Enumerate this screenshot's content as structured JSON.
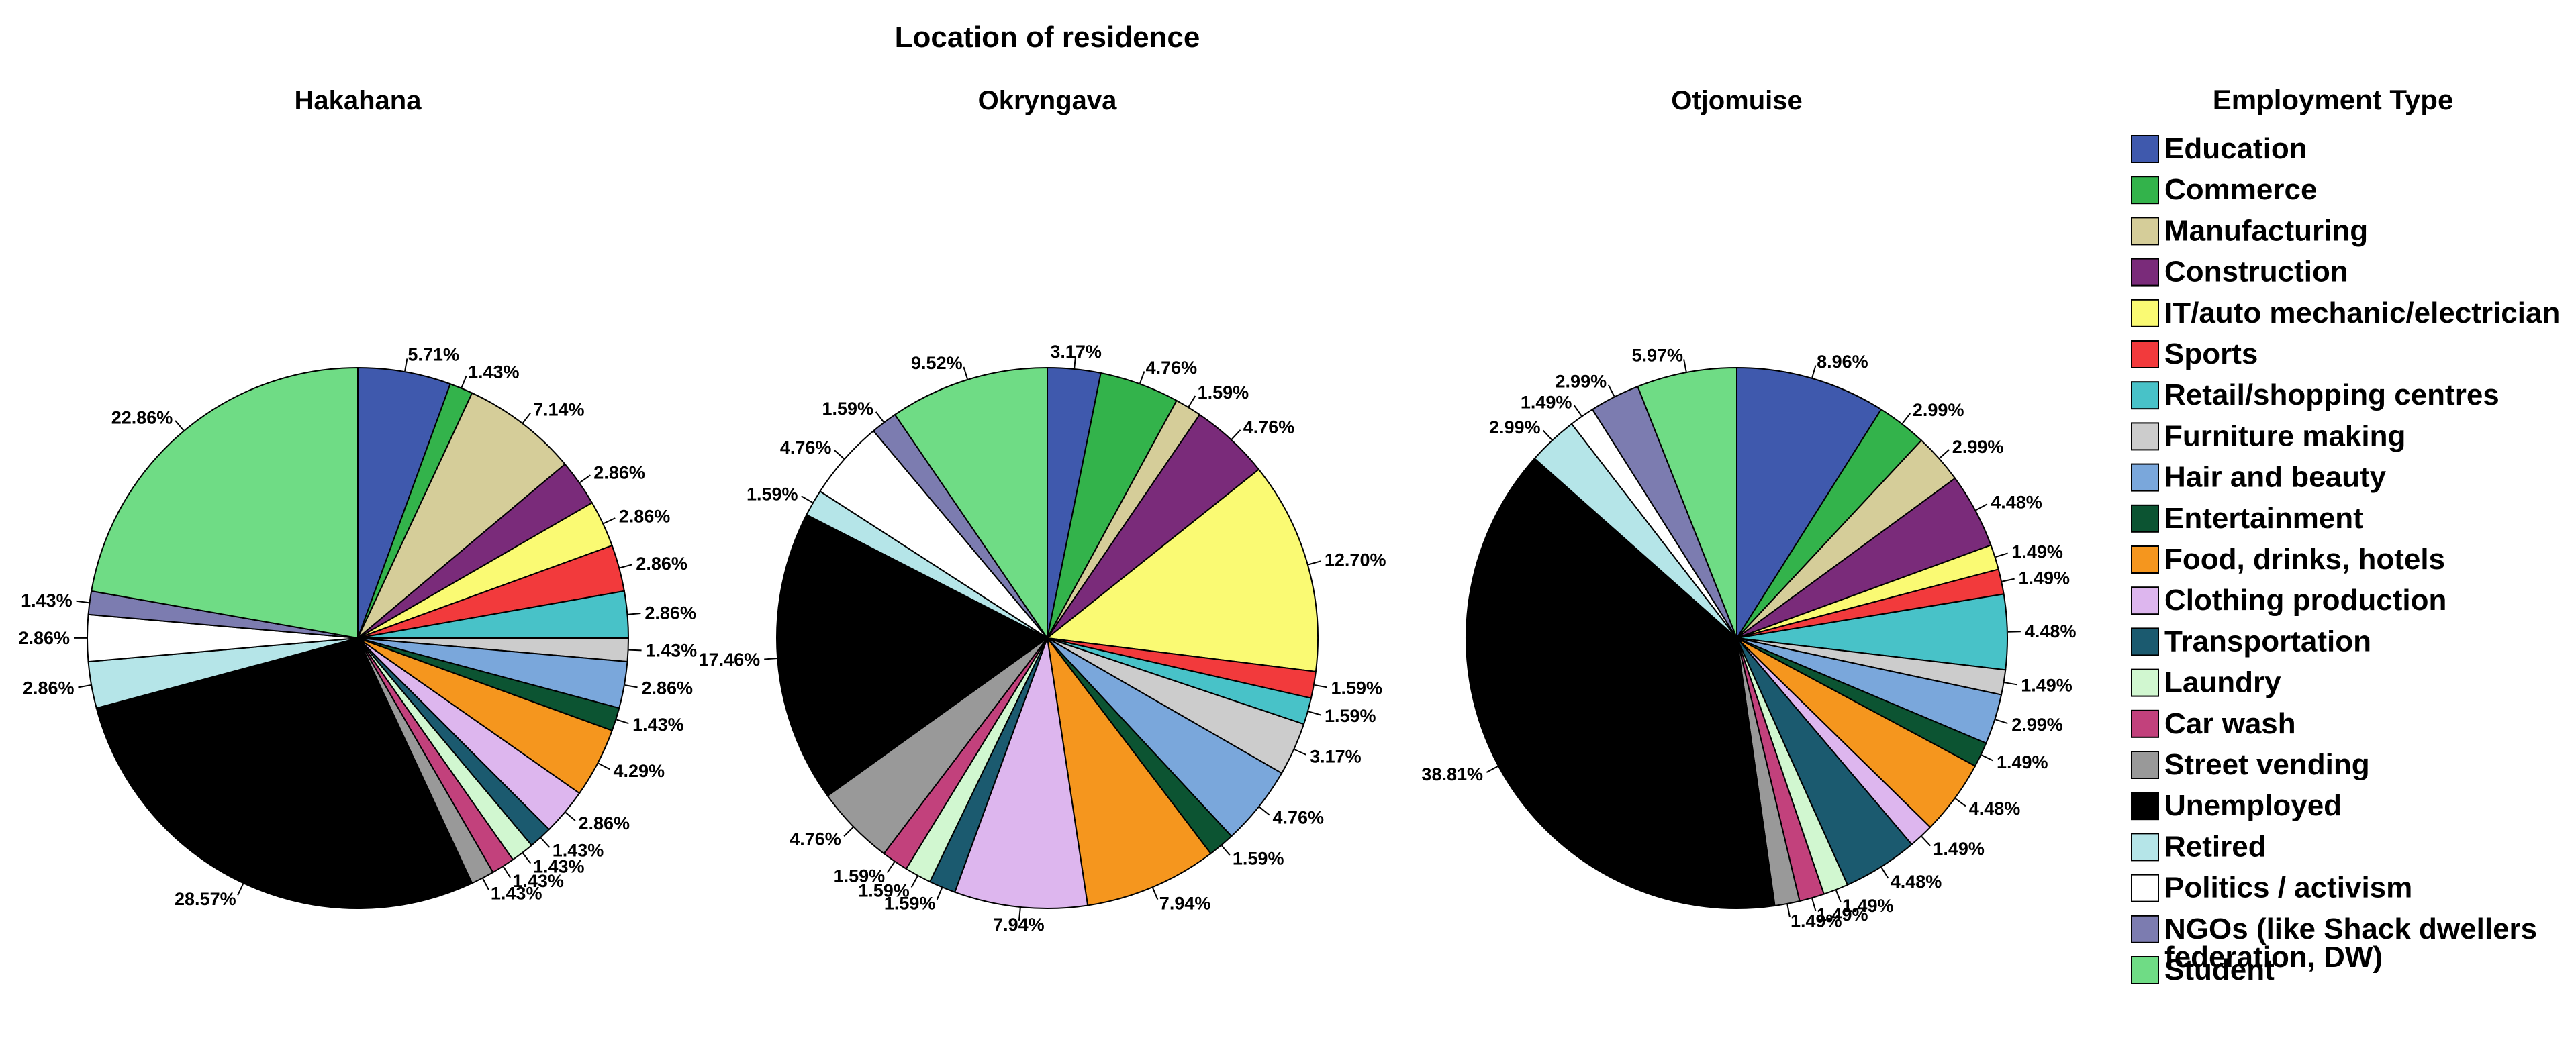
{
  "chart_data": {
    "type": "pie",
    "title": "Location of residence",
    "legend_title": "Employment Type",
    "legend_position": "right",
    "categories": [
      "Education",
      "Commerce",
      "Manufacturing",
      "Construction",
      "IT/auto mechanic/electrician",
      "Sports",
      "Retail/shopping centres",
      "Furniture making",
      "Hair and beauty",
      "Entertainment",
      "Food, drinks, hotels",
      "Clothing production",
      "Transportation",
      "Laundry",
      "Car wash",
      "Street vending",
      "Unemployed",
      "Retired",
      "Politics / activism",
      "NGOs (like Shack dwellers federation, DW)",
      "Student"
    ],
    "legend_lines": [
      [
        "Education"
      ],
      [
        "Commerce"
      ],
      [
        "Manufacturing"
      ],
      [
        "Construction"
      ],
      [
        "IT/auto mechanic/electrician"
      ],
      [
        "Sports"
      ],
      [
        "Retail/shopping centres"
      ],
      [
        "Furniture making"
      ],
      [
        "Hair and beauty"
      ],
      [
        "Entertainment"
      ],
      [
        "Food, drinks, hotels"
      ],
      [
        "Clothing production"
      ],
      [
        "Transportation"
      ],
      [
        "Laundry"
      ],
      [
        "Car wash"
      ],
      [
        "Street vending"
      ],
      [
        "Unemployed"
      ],
      [
        "Retired"
      ],
      [
        "Politics / activism"
      ],
      [
        "NGOs (like Shack dwellers",
        "federation, DW)"
      ],
      [
        "Student"
      ]
    ],
    "colors": [
      "#3f59ad",
      "#33b34b",
      "#d5cd99",
      "#7a2b7a",
      "#fafa73",
      "#f23a3c",
      "#48c2c8",
      "#cccccc",
      "#7aa7db",
      "#0c5432",
      "#f5961e",
      "#ddb6ee",
      "#1b5a6f",
      "#d1f7d0",
      "#c2417c",
      "#999999",
      "#000000",
      "#b5e5e8",
      "#ffffff",
      "#7c7cb0",
      "#6fdc85"
    ],
    "series": [
      {
        "name": "Hakahana",
        "values": [
          5.71,
          1.43,
          7.14,
          2.86,
          2.86,
          2.86,
          2.86,
          1.43,
          2.86,
          1.43,
          4.29,
          2.86,
          1.43,
          1.43,
          1.43,
          1.43,
          28.57,
          2.86,
          2.86,
          1.43,
          22.86
        ],
        "labels": [
          "5.71%",
          "1.43%",
          "7.14%",
          "2.86%",
          "2.86%",
          "2.86%",
          "2.86%",
          "1.43%",
          "2.86%",
          "1.43%",
          "4.29%",
          "2.86%",
          "1.43%",
          "1.43%",
          "1.43%",
          "1.43%",
          "28.57%",
          "2.86%",
          "2.86%",
          "1.43%",
          "22.86%"
        ]
      },
      {
        "name": "Okryngava",
        "values": [
          3.17,
          4.76,
          1.59,
          4.76,
          12.7,
          1.59,
          1.59,
          3.17,
          4.76,
          1.59,
          7.94,
          7.94,
          1.59,
          1.59,
          1.59,
          4.76,
          17.46,
          1.59,
          4.76,
          1.59,
          9.52
        ],
        "labels": [
          "3.17%",
          "4.76%",
          "1.59%",
          "4.76%",
          "12.70%",
          "1.59%",
          "1.59%",
          "3.17%",
          "4.76%",
          "1.59%",
          "7.94%",
          "7.94%",
          "1.59%",
          "1.59%",
          "1.59%",
          "4.76%",
          "17.46%",
          "1.59%",
          "4.76%",
          "1.59%",
          "9.52%"
        ]
      },
      {
        "name": "Otjomuise",
        "values": [
          8.96,
          2.99,
          2.99,
          4.48,
          1.49,
          1.49,
          4.48,
          1.49,
          2.99,
          1.49,
          4.48,
          1.49,
          4.48,
          1.49,
          1.49,
          1.49,
          38.81,
          2.99,
          1.49,
          2.99,
          5.97
        ],
        "labels": [
          "8.96%",
          "2.99%",
          "2.99%",
          "4.48%",
          "1.49%",
          "1.49%",
          "4.48%",
          "1.49%",
          "2.99%",
          "1.49%",
          "4.48%",
          "1.49%",
          "4.48%",
          "1.49%",
          "1.49%",
          "1.49%",
          "38.81%",
          "2.99%",
          "1.49%",
          "2.99%",
          "5.97%"
        ]
      }
    ]
  }
}
